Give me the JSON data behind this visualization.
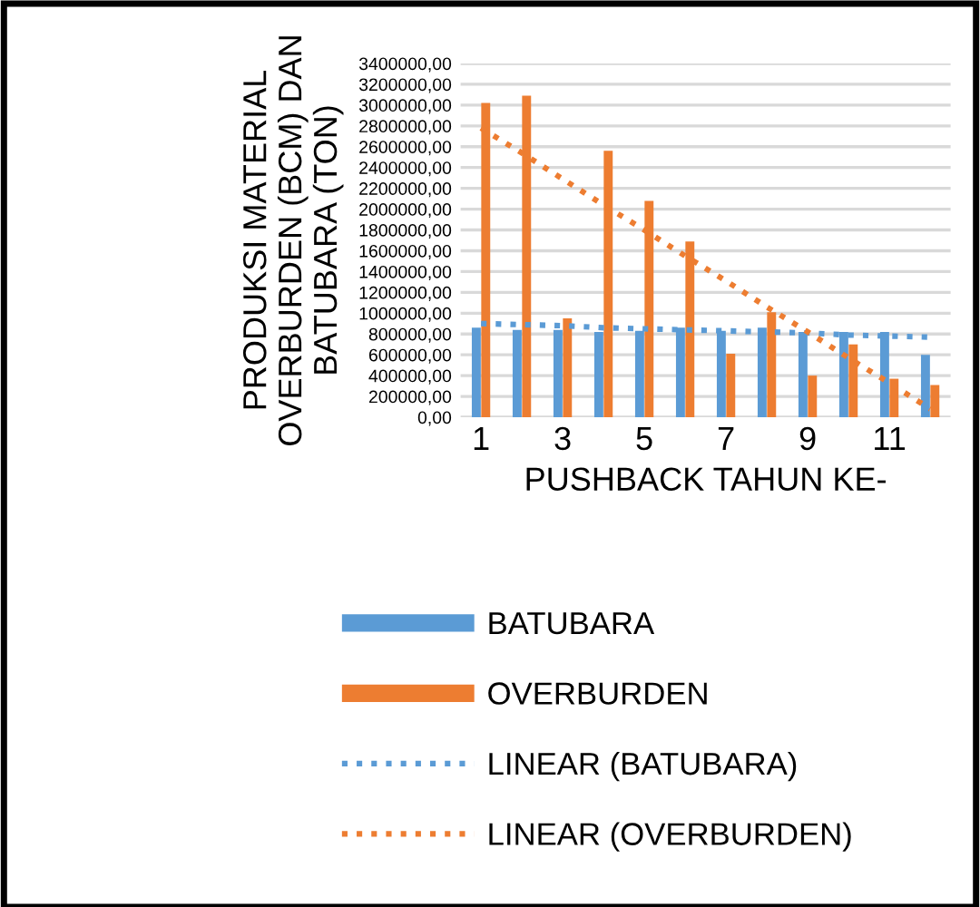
{
  "chart_data": {
    "type": "bar",
    "xlabel": "PUSHBACK TAHUN KE-",
    "ylabel": "PRODUKSI MATERIAL\nOVERBURDEN (BCM) DAN\nBATUBARA (TON)",
    "x": [
      1,
      2,
      3,
      4,
      5,
      6,
      7,
      8,
      9,
      10,
      11,
      12
    ],
    "series": [
      {
        "name": "BATUBARA",
        "color": "#5b9bd5",
        "values": [
          860000,
          840000,
          840000,
          820000,
          830000,
          860000,
          830000,
          860000,
          820000,
          820000,
          820000,
          600000
        ]
      },
      {
        "name": "OVERBURDEN",
        "color": "#ed7d31",
        "values": [
          3020000,
          3090000,
          950000,
          2560000,
          2080000,
          1690000,
          610000,
          1010000,
          400000,
          700000,
          370000,
          310000
        ]
      },
      {
        "name": "LINEAR (BATUBARA)",
        "type": "line",
        "line_style": "dotted",
        "color": "#5b9bd5",
        "values": [
          900000,
          890000,
          880000,
          860000,
          850000,
          840000,
          830000,
          820000,
          810000,
          790000,
          780000,
          770000
        ]
      },
      {
        "name": "LINEAR (OVERBURDEN)",
        "type": "line",
        "line_style": "dotted",
        "color": "#ed7d31",
        "values": [
          2780000,
          2540000,
          2290000,
          2040000,
          1800000,
          1550000,
          1310000,
          1060000,
          820000,
          570000,
          330000,
          80000
        ]
      }
    ],
    "xlim": [
      0.5,
      12.5
    ],
    "xticks": [
      1,
      3,
      5,
      7,
      9,
      11
    ],
    "ylim": [
      0,
      3400000
    ],
    "yticks": [
      {
        "value": 0,
        "label": "0,00"
      },
      {
        "value": 200000,
        "label": "200000,00"
      },
      {
        "value": 400000,
        "label": "400000,00"
      },
      {
        "value": 600000,
        "label": "600000,00"
      },
      {
        "value": 800000,
        "label": "800000,00"
      },
      {
        "value": 1000000,
        "label": "1000000,00"
      },
      {
        "value": 1200000,
        "label": "1200000,00"
      },
      {
        "value": 1400000,
        "label": "1400000,00"
      },
      {
        "value": 1600000,
        "label": "1600000,00"
      },
      {
        "value": 1800000,
        "label": "1800000,00"
      },
      {
        "value": 2000000,
        "label": "2000000,00"
      },
      {
        "value": 2200000,
        "label": "2200000,00"
      },
      {
        "value": 2400000,
        "label": "2400000,00"
      },
      {
        "value": 2600000,
        "label": "2600000,00"
      },
      {
        "value": 2800000,
        "label": "2800000,00"
      },
      {
        "value": 3000000,
        "label": "3000000,00"
      },
      {
        "value": 3200000,
        "label": "3200000,00"
      },
      {
        "value": 3400000,
        "label": "3400000,00"
      }
    ],
    "grid": "y",
    "legend": "bottom"
  }
}
